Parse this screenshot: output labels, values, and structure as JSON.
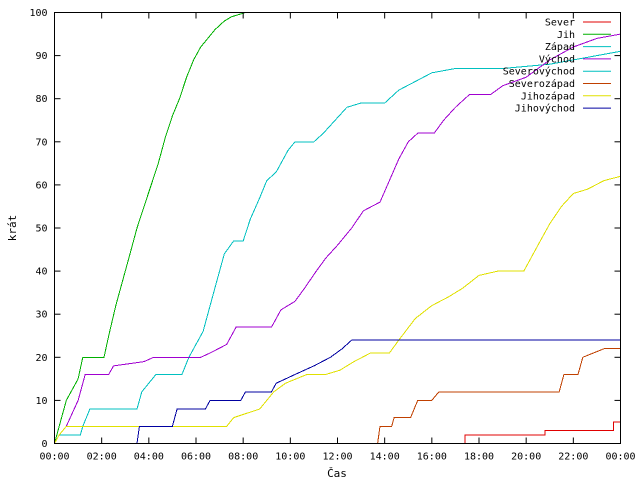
{
  "chart_data": {
    "type": "line",
    "xlabel": "Čas",
    "ylabel": "krát",
    "xlim": [
      0,
      24
    ],
    "ylim": [
      0,
      100
    ],
    "x_ticks": [
      0,
      2,
      4,
      6,
      8,
      10,
      12,
      14,
      16,
      18,
      20,
      22,
      24
    ],
    "x_tick_labels": [
      "00:00",
      "02:00",
      "04:00",
      "06:00",
      "08:00",
      "10:00",
      "12:00",
      "14:00",
      "16:00",
      "18:00",
      "20:00",
      "22:00",
      "00:00"
    ],
    "y_ticks": [
      0,
      10,
      20,
      30,
      40,
      50,
      60,
      70,
      80,
      90,
      100
    ],
    "grid": false,
    "legend_position": "top-right",
    "series": [
      {
        "name": "Sever",
        "color": "#e00000",
        "points": [
          [
            0,
            0
          ],
          [
            17.4,
            0
          ],
          [
            17.4,
            2
          ],
          [
            20.8,
            2
          ],
          [
            20.8,
            3
          ],
          [
            23.7,
            3
          ],
          [
            23.7,
            5
          ],
          [
            24,
            5
          ]
        ]
      },
      {
        "name": "Jih",
        "color": "#00b000",
        "points": [
          [
            0,
            0
          ],
          [
            0.2,
            4
          ],
          [
            0.5,
            10
          ],
          [
            1.0,
            15
          ],
          [
            1.2,
            20
          ],
          [
            2.1,
            20
          ],
          [
            2.3,
            25
          ],
          [
            2.6,
            32
          ],
          [
            2.9,
            38
          ],
          [
            3.2,
            44
          ],
          [
            3.5,
            50
          ],
          [
            3.8,
            55
          ],
          [
            4.1,
            60
          ],
          [
            4.4,
            65
          ],
          [
            4.7,
            71
          ],
          [
            5.0,
            76
          ],
          [
            5.3,
            80
          ],
          [
            5.6,
            85
          ],
          [
            5.9,
            89
          ],
          [
            6.2,
            92
          ],
          [
            6.5,
            94
          ],
          [
            6.8,
            96
          ],
          [
            7.2,
            98
          ],
          [
            7.5,
            99
          ],
          [
            8.1,
            100
          ],
          [
            24,
            100
          ]
        ]
      },
      {
        "name": "Západ",
        "color": "#00c0c0",
        "points": [
          [
            0,
            0
          ],
          [
            0.2,
            2
          ],
          [
            1.1,
            2
          ],
          [
            1.2,
            4
          ],
          [
            1.5,
            8
          ],
          [
            3.5,
            8
          ],
          [
            3.7,
            12
          ],
          [
            4.3,
            16
          ],
          [
            5.4,
            16
          ],
          [
            5.7,
            20
          ],
          [
            6.3,
            26
          ],
          [
            6.6,
            32
          ],
          [
            6.9,
            38
          ],
          [
            7.2,
            44
          ],
          [
            7.6,
            47
          ],
          [
            8.0,
            47
          ],
          [
            8.3,
            52
          ],
          [
            8.7,
            57
          ],
          [
            9.0,
            61
          ],
          [
            9.4,
            63
          ],
          [
            9.9,
            68
          ],
          [
            10.2,
            70
          ],
          [
            11.0,
            70
          ],
          [
            11.4,
            72
          ],
          [
            11.9,
            75
          ],
          [
            12.4,
            78
          ],
          [
            13.0,
            79
          ],
          [
            14.0,
            79
          ],
          [
            14.6,
            82
          ],
          [
            15.3,
            84
          ],
          [
            16.0,
            86
          ],
          [
            17.0,
            87
          ],
          [
            19.0,
            87
          ],
          [
            21.0,
            88
          ],
          [
            23.0,
            90
          ],
          [
            24,
            91
          ]
        ]
      },
      {
        "name": "Východ",
        "color": "#a000d0",
        "points": [
          [
            0,
            0
          ],
          [
            0.2,
            2
          ],
          [
            0.5,
            4
          ],
          [
            1.0,
            10
          ],
          [
            1.3,
            16
          ],
          [
            2.3,
            16
          ],
          [
            2.5,
            18
          ],
          [
            3.8,
            19
          ],
          [
            4.2,
            20
          ],
          [
            6.2,
            20
          ],
          [
            6.6,
            21
          ],
          [
            7.3,
            23
          ],
          [
            7.7,
            27
          ],
          [
            9.2,
            27
          ],
          [
            9.6,
            31
          ],
          [
            10.2,
            33
          ],
          [
            10.6,
            36
          ],
          [
            11.1,
            40
          ],
          [
            11.5,
            43
          ],
          [
            12.0,
            46
          ],
          [
            12.6,
            50
          ],
          [
            13.1,
            54
          ],
          [
            13.8,
            56
          ],
          [
            14.2,
            61
          ],
          [
            14.6,
            66
          ],
          [
            15.0,
            70
          ],
          [
            15.4,
            72
          ],
          [
            16.1,
            72
          ],
          [
            16.5,
            75
          ],
          [
            17.0,
            78
          ],
          [
            17.6,
            81
          ],
          [
            18.5,
            81
          ],
          [
            19.0,
            83
          ],
          [
            20.0,
            85
          ],
          [
            21.0,
            89
          ],
          [
            22.0,
            92
          ],
          [
            23.0,
            94
          ],
          [
            24,
            95
          ]
        ]
      },
      {
        "name": "Severovýchod",
        "color": "#00c0c0",
        "points": []
      },
      {
        "name": "Severozápad",
        "color": "#c04000",
        "points": [
          [
            0,
            0
          ],
          [
            13.7,
            0
          ],
          [
            13.8,
            4
          ],
          [
            14.3,
            4
          ],
          [
            14.4,
            6
          ],
          [
            15.1,
            6
          ],
          [
            15.4,
            10
          ],
          [
            16.0,
            10
          ],
          [
            16.3,
            12
          ],
          [
            21.4,
            12
          ],
          [
            21.6,
            16
          ],
          [
            22.2,
            16
          ],
          [
            22.4,
            20
          ],
          [
            23.3,
            22
          ],
          [
            24,
            22
          ]
        ]
      },
      {
        "name": "Jihozápad",
        "color": "#e0e000",
        "points": [
          [
            0,
            0
          ],
          [
            0.2,
            2
          ],
          [
            0.5,
            4
          ],
          [
            7.3,
            4
          ],
          [
            7.6,
            6
          ],
          [
            8.7,
            8
          ],
          [
            9.3,
            12
          ],
          [
            9.8,
            14
          ],
          [
            10.7,
            16
          ],
          [
            11.5,
            16
          ],
          [
            12.1,
            17
          ],
          [
            12.7,
            19
          ],
          [
            13.4,
            21
          ],
          [
            14.2,
            21
          ],
          [
            14.6,
            24
          ],
          [
            15.3,
            29
          ],
          [
            16.0,
            32
          ],
          [
            16.7,
            34
          ],
          [
            17.3,
            36
          ],
          [
            18.0,
            39
          ],
          [
            18.8,
            40
          ],
          [
            19.9,
            40
          ],
          [
            20.2,
            43
          ],
          [
            20.6,
            47
          ],
          [
            21.0,
            51
          ],
          [
            21.5,
            55
          ],
          [
            22.0,
            58
          ],
          [
            22.6,
            59
          ],
          [
            23.3,
            61
          ],
          [
            24,
            62
          ]
        ]
      },
      {
        "name": "Jihovýchod",
        "color": "#0000a0",
        "points": [
          [
            0,
            0
          ],
          [
            3.5,
            0
          ],
          [
            3.6,
            4
          ],
          [
            5.0,
            4
          ],
          [
            5.2,
            8
          ],
          [
            6.4,
            8
          ],
          [
            6.6,
            10
          ],
          [
            7.9,
            10
          ],
          [
            8.1,
            12
          ],
          [
            9.2,
            12
          ],
          [
            9.4,
            14
          ],
          [
            10.2,
            16
          ],
          [
            11.0,
            18
          ],
          [
            11.7,
            20
          ],
          [
            12.2,
            22
          ],
          [
            12.6,
            24
          ],
          [
            24,
            24
          ]
        ]
      }
    ]
  }
}
